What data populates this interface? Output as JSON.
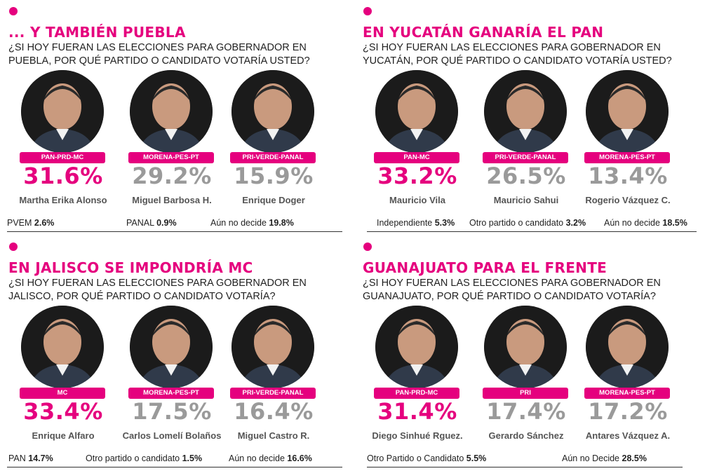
{
  "panels": [
    {
      "title": "... Y TAMBIÉN PUEBLA",
      "question": "¿Si hoy fueran las elecciones para gobernador en Puebla, por qué partido o candidato votaría usted?",
      "candidates": [
        {
          "party": "PAN-PRD-MC",
          "pct": "31.6%",
          "name": "Martha Erika Alonso"
        },
        {
          "party": "MORENA-PES-PT",
          "pct": "29.2%",
          "name": "Miguel Barbosa H."
        },
        {
          "party": "PRI-VERDE-PANAL",
          "pct": "15.9%",
          "name": "Enrique Doger"
        }
      ],
      "footer": [
        {
          "label": "PVEM",
          "value": "2.6%"
        },
        {
          "label": "PANAL",
          "value": "0.9%"
        },
        {
          "label": "Aún no decide",
          "value": "19.8%"
        }
      ]
    },
    {
      "title": "EN YUCATÁN GANARÍA EL PAN",
      "question": "¿Si hoy fueran las elecciones para gobernador en Yucatán, por qué partido o candidato votaría usted?",
      "candidates": [
        {
          "party": "PAN-MC",
          "pct": "33.2%",
          "name": "Mauricio Vila"
        },
        {
          "party": "PRI-VERDE-PANAL",
          "pct": "26.5%",
          "name": "Mauricio Sahui"
        },
        {
          "party": "MORENA-PES-PT",
          "pct": "13.4%",
          "name": "Rogerio Vázquez C."
        }
      ],
      "footer": [
        {
          "label": "Independiente",
          "value": "5.3%"
        },
        {
          "label": "Otro partido o candidato",
          "value": "3.2%"
        },
        {
          "label": "Aún no decide",
          "value": "18.5%"
        }
      ]
    },
    {
      "title": "EN JALISCO SE IMPONDRÍA MC",
      "question": "¿Si hoy fueran las elecciones para gobernador en Jalisco, por qué partido o candidato votaría?",
      "candidates": [
        {
          "party": "MC",
          "pct": "33.4%",
          "name": "Enrique Alfaro"
        },
        {
          "party": "MORENA-PES-PT",
          "pct": "17.5%",
          "name": "Carlos Lomelí Bolaños"
        },
        {
          "party": "PRI-VERDE-PANAL",
          "pct": "16.4%",
          "name": "Miguel Castro R."
        }
      ],
      "footer": [
        {
          "label": "PAN",
          "value": "14.7%"
        },
        {
          "label": "Otro partido o candidato",
          "value": "1.5%"
        },
        {
          "label": "Aún no decide",
          "value": "16.6%"
        }
      ]
    },
    {
      "title": "GUANAJUATO PARA EL FRENTE",
      "question": "¿Si hoy fueran las elecciones para gobernador en Guanajuato, por qué partido o candidato votaría?",
      "candidates": [
        {
          "party": "PAN-PRD-MC",
          "pct": "31.4%",
          "name": "Diego Sinhué Rguez."
        },
        {
          "party": "PRI",
          "pct": "17.4%",
          "name": "Gerardo Sánchez"
        },
        {
          "party": "MORENA-PES-PT",
          "pct": "17.2%",
          "name": "Antares Vázquez A."
        }
      ],
      "footer": [
        {
          "label": "Otro Partido o Candidato",
          "value": "5.5%"
        },
        {
          "label": "Aún no Decide",
          "value": "28.5%"
        }
      ]
    }
  ],
  "colors": {
    "accent": "#e5007e",
    "muted": "#9a9a9a",
    "photo_bg": "#111111"
  }
}
